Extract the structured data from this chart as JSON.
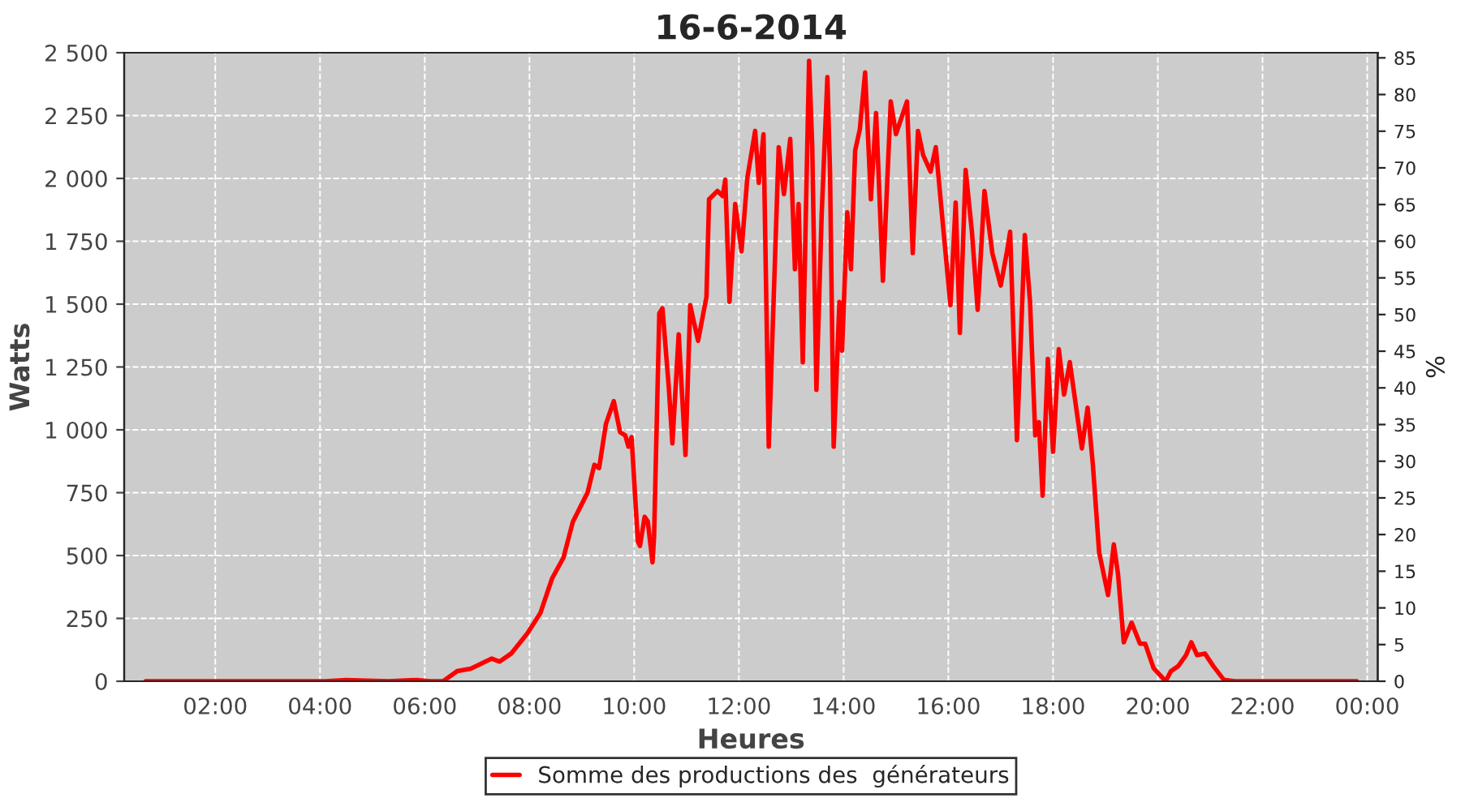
{
  "chart_data": {
    "type": "line",
    "title": "16-6-2014",
    "xlabel": "Heures",
    "ylabel": "Watts",
    "y2label": "%",
    "xlim": [
      0.26,
      24.2
    ],
    "ylim": [
      0,
      2500
    ],
    "y2lim": [
      0,
      85.7
    ],
    "xticks": [
      {
        "value": 2,
        "label": "02:00"
      },
      {
        "value": 4,
        "label": "04:00"
      },
      {
        "value": 6,
        "label": "06:00"
      },
      {
        "value": 8,
        "label": "08:00"
      },
      {
        "value": 10,
        "label": "10:00"
      },
      {
        "value": 12,
        "label": "12:00"
      },
      {
        "value": 14,
        "label": "14:00"
      },
      {
        "value": 16,
        "label": "16:00"
      },
      {
        "value": 18,
        "label": "18:00"
      },
      {
        "value": 20,
        "label": "20:00"
      },
      {
        "value": 22,
        "label": "22:00"
      },
      {
        "value": 24,
        "label": "00:00"
      }
    ],
    "yticks": [
      0,
      250,
      500,
      750,
      {
        "value": 1000,
        "label": "1 000"
      },
      {
        "value": 1250,
        "label": "1 250"
      },
      {
        "value": 1500,
        "label": "1 500"
      },
      {
        "value": 1750,
        "label": "1 750"
      },
      {
        "value": 2000,
        "label": "2 000"
      },
      {
        "value": 2250,
        "label": "2 250"
      },
      {
        "value": 2500,
        "label": "2 500"
      }
    ],
    "y2ticks": [
      0,
      5,
      10,
      15,
      20,
      25,
      30,
      35,
      40,
      45,
      50,
      55,
      60,
      65,
      70,
      75,
      80,
      85
    ],
    "grid": true,
    "legend": "bottom",
    "marker": "none",
    "line_style": "solid",
    "series": [
      {
        "name": "Somme des productions des  générateurs",
        "color": "#ff0000",
        "x": [
          0.67,
          4.1,
          4.5,
          5.3,
          5.85,
          6.1,
          6.35,
          6.62,
          6.88,
          7.28,
          7.43,
          7.65,
          7.96,
          8.21,
          8.43,
          8.65,
          8.83,
          9.11,
          9.24,
          9.33,
          9.46,
          9.61,
          9.73,
          9.83,
          9.89,
          9.95,
          10.07,
          10.11,
          10.2,
          10.26,
          10.35,
          10.38,
          10.48,
          10.54,
          10.66,
          10.73,
          10.85,
          10.98,
          11.07,
          11.22,
          11.38,
          11.43,
          11.59,
          11.69,
          11.74,
          11.82,
          11.93,
          12.05,
          12.16,
          12.31,
          12.38,
          12.47,
          12.57,
          12.76,
          12.86,
          12.98,
          13.07,
          13.14,
          13.22,
          13.34,
          13.4,
          13.48,
          13.58,
          13.69,
          13.74,
          13.81,
          13.92,
          13.97,
          14.07,
          14.14,
          14.22,
          14.31,
          14.41,
          14.52,
          14.62,
          14.75,
          14.9,
          15.0,
          15.21,
          15.32,
          15.42,
          15.52,
          15.66,
          15.76,
          15.9,
          16.04,
          16.14,
          16.22,
          16.33,
          16.45,
          16.56,
          16.69,
          16.84,
          17.0,
          17.12,
          17.18,
          17.31,
          17.46,
          17.56,
          17.66,
          17.73,
          17.8,
          17.9,
          18.0,
          18.11,
          18.21,
          18.32,
          18.55,
          18.66,
          18.76,
          18.88,
          19.05,
          19.16,
          19.24,
          19.35,
          19.5,
          19.66,
          19.76,
          19.92,
          20.15,
          20.25,
          20.39,
          20.54,
          20.64,
          20.75,
          20.9,
          21.06,
          21.26,
          21.47,
          23.8
        ],
        "values": [
          0,
          0,
          5,
          0,
          5,
          0,
          0,
          40,
          50,
          90,
          78,
          110,
          190,
          272,
          408,
          492,
          635,
          751,
          861,
          848,
          1023,
          1114,
          991,
          978,
          933,
          971,
          557,
          538,
          654,
          635,
          473,
          576,
          1464,
          1483,
          1172,
          946,
          1380,
          900,
          1496,
          1354,
          1528,
          1917,
          1950,
          1930,
          1995,
          1509,
          1898,
          1710,
          2001,
          2189,
          1982,
          2176,
          933,
          2124,
          1937,
          2157,
          1639,
          1898,
          1269,
          2468,
          2131,
          1159,
          1852,
          2403,
          2027,
          933,
          1509,
          1315,
          1865,
          1639,
          2111,
          2196,
          2422,
          1917,
          2260,
          1593,
          2306,
          2176,
          2306,
          1703,
          2189,
          2092,
          2027,
          2124,
          1807,
          1496,
          1904,
          1386,
          2034,
          1788,
          1477,
          1950,
          1703,
          1574,
          1710,
          1788,
          959,
          1775,
          1509,
          978,
          1030,
          738,
          1282,
          913,
          1321,
          1140,
          1269,
          926,
          1088,
          861,
          512,
          343,
          544,
          427,
          155,
          233,
          149,
          149,
          52,
          0,
          40,
          60,
          104,
          155,
          104,
          110,
          60,
          6,
          0,
          0
        ]
      }
    ]
  }
}
